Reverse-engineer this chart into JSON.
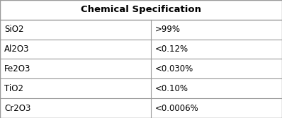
{
  "title": "Chemical Specification",
  "rows": [
    [
      "SiO2",
      ">99%"
    ],
    [
      "Al2O3",
      "<0.12%"
    ],
    [
      "Fe2O3",
      "<0.030%"
    ],
    [
      "TiO2",
      "<0.10%"
    ],
    [
      "Cr2O3",
      "<0.0006%"
    ]
  ],
  "bg_color": "#ffffff",
  "border_color": "#999999",
  "header_line_color": "#999999",
  "title_fontsize": 9.5,
  "cell_fontsize": 8.5,
  "title_fontweight": "bold",
  "col_split": 0.535,
  "fig_width": 3.98,
  "fig_height": 1.67,
  "dpi": 100
}
